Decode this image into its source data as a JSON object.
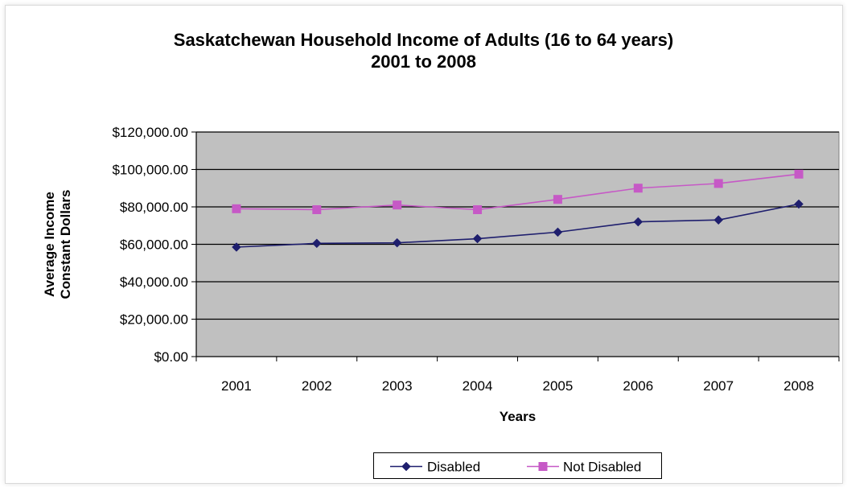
{
  "chart_data": {
    "type": "line",
    "title": "Saskatchewan Household Income of Adults (16 to 64 years)",
    "subtitle": "2001 to 2008",
    "xlabel": "Years",
    "ylabel": "Average Income Constant Dollars",
    "ylabel_lines": [
      "Average Income",
      "Constant Dollars"
    ],
    "categories": [
      "2001",
      "2002",
      "2003",
      "2004",
      "2005",
      "2006",
      "2007",
      "2008"
    ],
    "ylim": [
      0,
      120000
    ],
    "yticks": [
      0,
      20000,
      40000,
      60000,
      80000,
      100000,
      120000
    ],
    "ytick_labels": [
      "$0.00",
      "$20,000.00",
      "$40,000.00",
      "$60,000.00",
      "$80,000.00",
      "$100,000.00",
      "$120,000.00"
    ],
    "grid": true,
    "plot_background": "#c0c0c0",
    "legend_position": "bottom",
    "series": [
      {
        "name": "Disabled",
        "color": "#1f1f6e",
        "marker": "diamond",
        "values": [
          58500,
          60500,
          60800,
          63000,
          66500,
          72000,
          73000,
          81500
        ]
      },
      {
        "name": "Not Disabled",
        "color": "#c659c6",
        "marker": "square",
        "values": [
          79000,
          78500,
          81000,
          78500,
          84000,
          90000,
          92500,
          97500
        ]
      }
    ]
  }
}
